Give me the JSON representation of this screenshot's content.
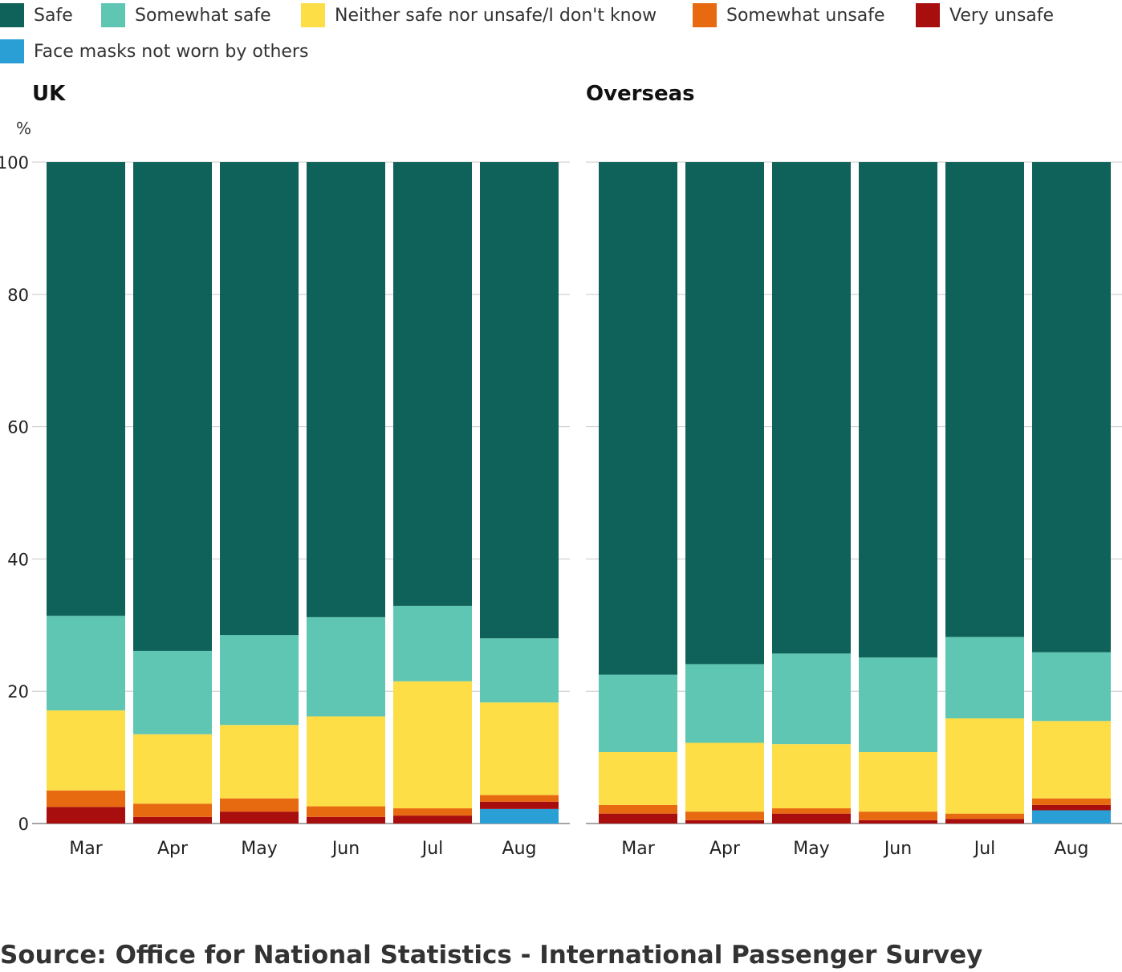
{
  "legend": [
    {
      "label": "Safe",
      "color": "#0f6259"
    },
    {
      "label": "Somewhat safe",
      "color": "#5fc6b3"
    },
    {
      "label": "Neither safe nor unsafe/I don't know",
      "color": "#fdde47"
    },
    {
      "label": "Somewhat unsafe",
      "color": "#e86a10"
    },
    {
      "label": "Very unsafe",
      "color": "#a80e0e"
    },
    {
      "label": "Face masks not worn by others",
      "color": "#2a9fd6"
    }
  ],
  "y_unit": "%",
  "source": "Source: Office for National Statistics - International Passenger Survey",
  "chart_data": [
    {
      "type": "bar",
      "stacked": true,
      "title": "UK",
      "categories": [
        "Mar",
        "Apr",
        "May",
        "Jun",
        "Jul",
        "Aug"
      ],
      "ylim": [
        0,
        100
      ],
      "yticks": [
        0,
        20,
        40,
        60,
        80,
        100
      ],
      "grid": true,
      "series": [
        {
          "name": "Face masks not worn by others",
          "values": [
            0,
            0,
            0,
            0,
            0,
            2.2
          ]
        },
        {
          "name": "Very unsafe",
          "values": [
            2.5,
            1.0,
            1.8,
            1.0,
            1.2,
            1.1
          ]
        },
        {
          "name": "Somewhat unsafe",
          "values": [
            2.5,
            2.0,
            2.0,
            1.6,
            1.1,
            1.0
          ]
        },
        {
          "name": "Neither safe nor unsafe/I don't know",
          "values": [
            12.1,
            10.5,
            11.1,
            13.6,
            19.2,
            14.0
          ]
        },
        {
          "name": "Somewhat safe",
          "values": [
            14.3,
            12.6,
            13.6,
            15.0,
            11.4,
            9.7
          ]
        },
        {
          "name": "Safe",
          "values": [
            68.6,
            73.9,
            71.5,
            68.8,
            67.1,
            72.0
          ]
        }
      ]
    },
    {
      "type": "bar",
      "stacked": true,
      "title": "Overseas",
      "categories": [
        "Mar",
        "Apr",
        "May",
        "Jun",
        "Jul",
        "Aug"
      ],
      "ylim": [
        0,
        100
      ],
      "grid": true,
      "series": [
        {
          "name": "Face masks not worn by others",
          "values": [
            0,
            0,
            0,
            0,
            0,
            2.0
          ]
        },
        {
          "name": "Very unsafe",
          "values": [
            1.5,
            0.5,
            1.5,
            0.5,
            0.7,
            0.8
          ]
        },
        {
          "name": "Somewhat unsafe",
          "values": [
            1.3,
            1.3,
            0.8,
            1.3,
            0.8,
            1.0
          ]
        },
        {
          "name": "Neither safe nor unsafe/I don't know",
          "values": [
            8.0,
            10.4,
            9.7,
            9.0,
            14.4,
            11.7
          ]
        },
        {
          "name": "Somewhat safe",
          "values": [
            11.7,
            11.9,
            13.7,
            14.3,
            12.3,
            10.4
          ]
        },
        {
          "name": "Safe",
          "values": [
            77.5,
            75.9,
            74.3,
            74.9,
            71.8,
            74.1
          ]
        }
      ]
    }
  ]
}
